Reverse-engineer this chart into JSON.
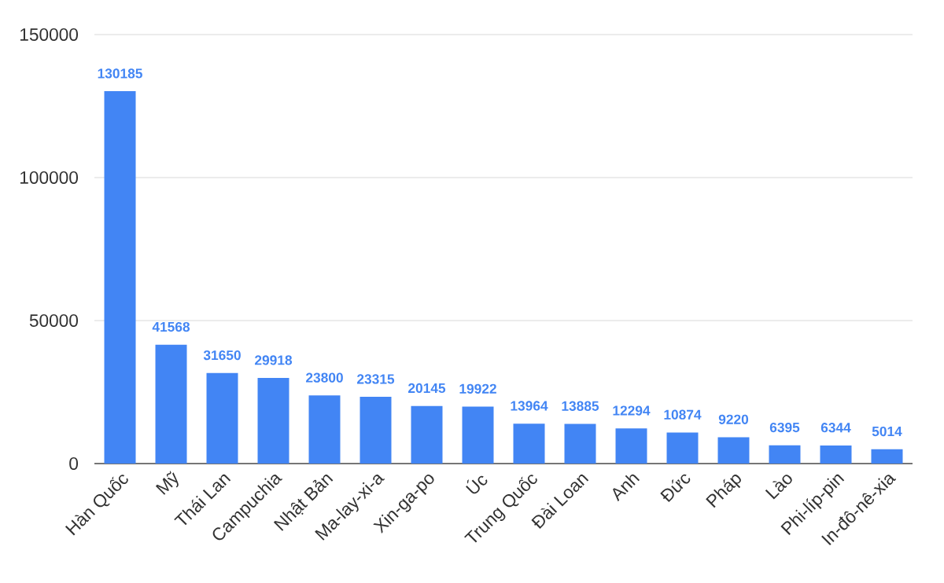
{
  "chart_data": {
    "type": "bar",
    "categories": [
      "Hàn Quốc",
      "Mỹ",
      "Thái Lan",
      "Campuchia",
      "Nhật Bản",
      "Ma-lay-xi-a",
      "Xin-ga-po",
      "Úc",
      "Trung Quốc",
      "Đài Loan",
      "Anh",
      "Đức",
      "Pháp",
      "Lào",
      "Phi-líp-pin",
      "In-đô-nê-xia"
    ],
    "values": [
      130185,
      41568,
      31650,
      29918,
      23800,
      23315,
      20145,
      19922,
      13964,
      13885,
      12294,
      10874,
      9220,
      6395,
      6344,
      5014
    ],
    "color": "#4285f4",
    "ylim": [
      0,
      150000
    ],
    "yticks": [
      0,
      50000,
      100000,
      150000
    ],
    "grid": "y",
    "data_labels": true
  }
}
